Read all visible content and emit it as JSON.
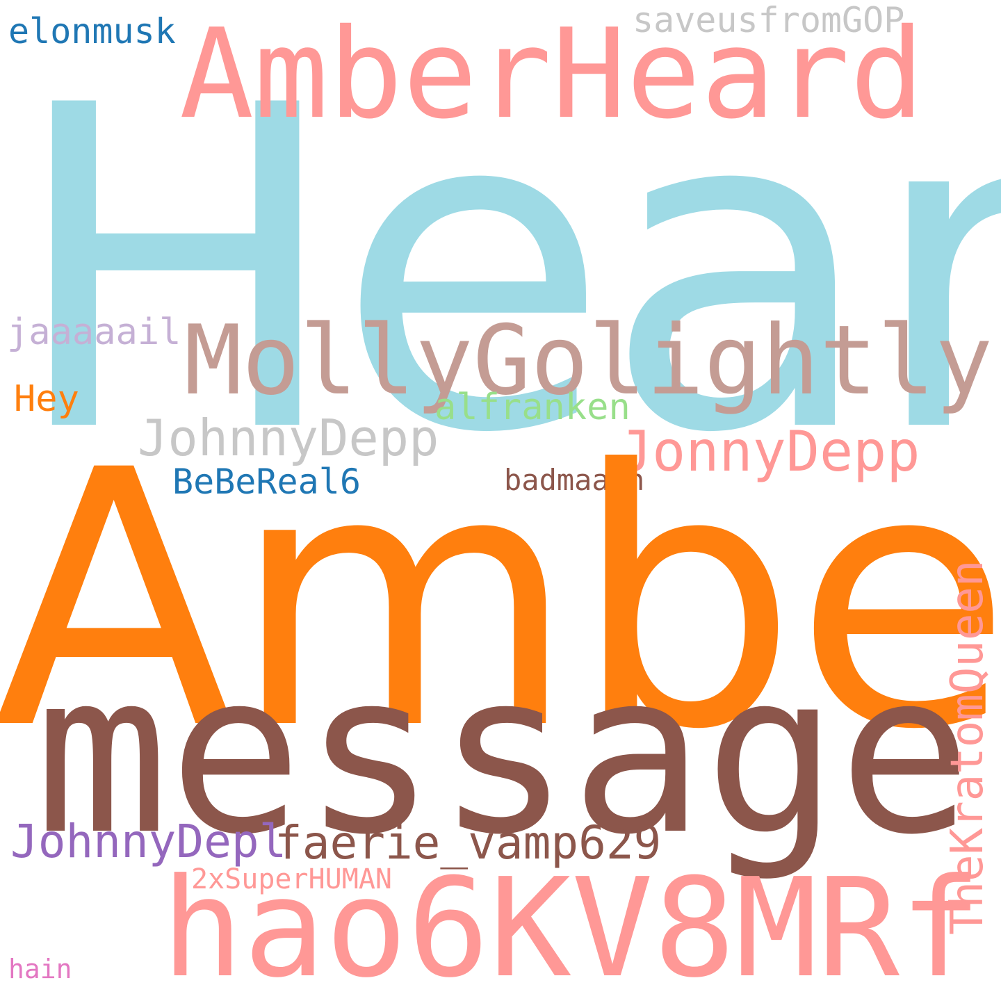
{
  "cloud": {
    "words": {
      "heard": {
        "text": "Heard",
        "color": "#9edae5"
      },
      "amberheard": {
        "text": "AmberHeard",
        "color": "#ff9896"
      },
      "saveus": {
        "text": "saveusfromGOP",
        "color": "#c7c7c7"
      },
      "elonmusk": {
        "text": "elonmusk",
        "color": "#1f77b4"
      },
      "molly": {
        "text": "MollyGolightly",
        "color": "#c49c94"
      },
      "jaaaaail": {
        "text": "jaaaaail",
        "color": "#c5b0d5"
      },
      "hey": {
        "text": "Hey",
        "color": "#ff7f0e"
      },
      "alfranken": {
        "text": "alfranken",
        "color": "#98df8a"
      },
      "johnnydepp": {
        "text": "JohnnyDepp",
        "color": "#c7c7c7"
      },
      "jonnydepp": {
        "text": "JonnyDepp",
        "color": "#ff9896"
      },
      "bebereal6": {
        "text": "BeBeReal6",
        "color": "#1f77b4"
      },
      "badmaash": {
        "text": "badmaash",
        "color": "#8c564b"
      },
      "amber": {
        "text": "Amber",
        "color": "#ff7f0e"
      },
      "message": {
        "text": "message",
        "color": "#8c564b"
      },
      "johnnydepl": {
        "text": "JohnnyDepl",
        "color": "#9467bd"
      },
      "faerie": {
        "text": "faerie_vamp629",
        "color": "#8c564b"
      },
      "2xsuper": {
        "text": "2xSuperHUMAN",
        "color": "#ff9896"
      },
      "hao": {
        "text": "hao6KV8MRf",
        "color": "#ff9896"
      },
      "hain": {
        "text": "hain",
        "color": "#e377c2"
      },
      "kratom": {
        "text": "TheKratomQueen",
        "color": "#ff9896"
      }
    }
  }
}
